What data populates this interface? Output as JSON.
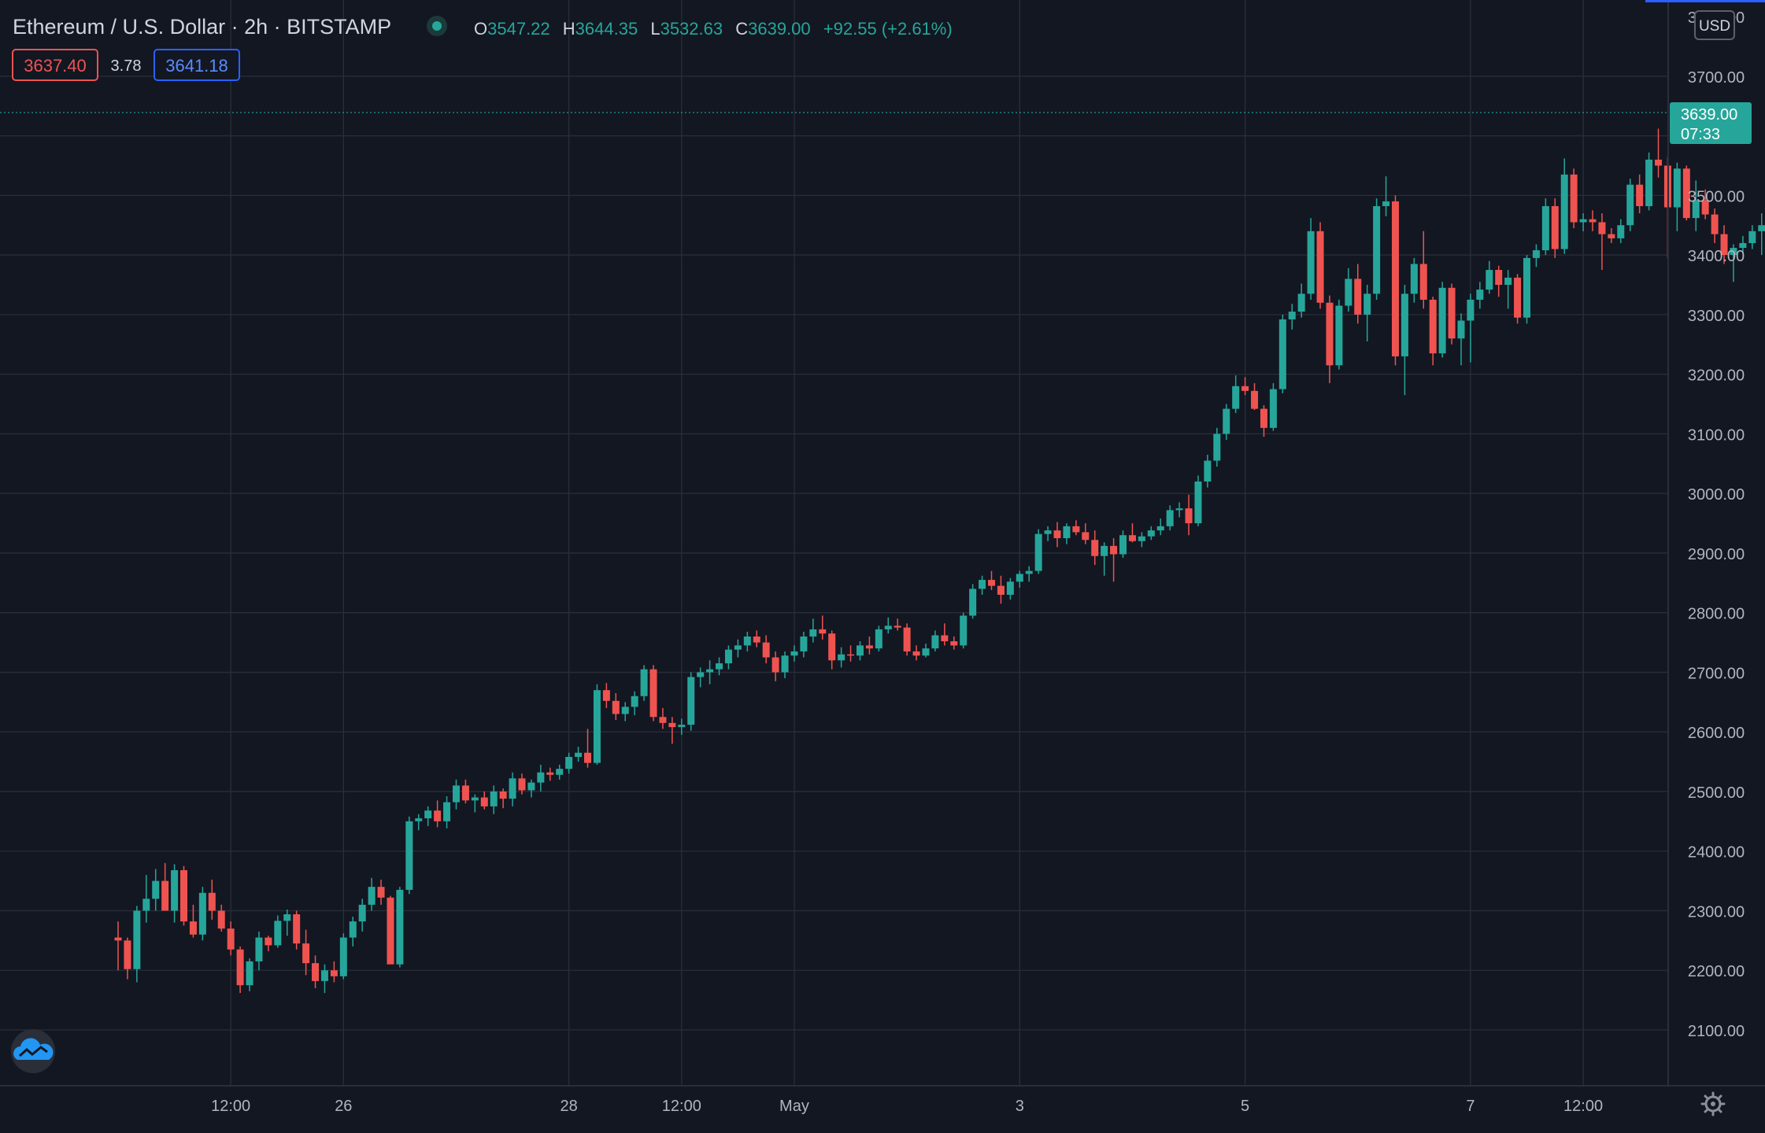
{
  "header": {
    "symbol": "Ethereum / U.S. Dollar",
    "interval": "2h",
    "exchange": "BITSTAMP",
    "o_label": "O",
    "o_value": "3547.22",
    "h_label": "H",
    "h_value": "3644.35",
    "l_label": "L",
    "l_value": "3532.63",
    "c_label": "C",
    "c_value": "3639.00",
    "change": "+92.55 (+2.61%)"
  },
  "quote": {
    "sell": "3637.40",
    "spread": "3.78",
    "buy": "3641.18"
  },
  "currency_button": "USD",
  "price_tag": {
    "price": "3639.00",
    "countdown": "07:33"
  },
  "colors": {
    "background": "#131722",
    "grid": "#2a2e39",
    "up": "#26a69a",
    "down": "#ef5350",
    "text": "#d1d4dc",
    "axis_text": "#b2b5be",
    "blue": "#2962ff"
  },
  "icons": {
    "logo": "tradingview-cloud-icon",
    "settings": "gear-icon"
  },
  "chart_data": {
    "type": "candlestick",
    "title": "Ethereum / U.S. Dollar · 2h · BITSTAMP",
    "y_ticks": [
      2100,
      2200,
      2300,
      2400,
      2500,
      2600,
      2700,
      2800,
      2900,
      3000,
      3100,
      3200,
      3300,
      3400,
      3500,
      3600,
      3700
    ],
    "ylim": [
      2010,
      3810
    ],
    "x_ticks": [
      {
        "label": "12:00",
        "t": 12
      },
      {
        "label": "26",
        "t": 24
      },
      {
        "label": "28",
        "t": 48
      },
      {
        "label": "12:00",
        "t": 60
      },
      {
        "label": "May",
        "t": 72
      },
      {
        "label": "3",
        "t": 96
      },
      {
        "label": "5",
        "t": 120
      },
      {
        "label": "7",
        "t": 144
      },
      {
        "label": "12:00",
        "t": 156
      }
    ],
    "x_unit": "candle index (2h candles)",
    "grid": true,
    "candles": [
      [
        2255,
        2282,
        2200,
        2250
      ],
      [
        2250,
        2255,
        2185,
        2202
      ],
      [
        2202,
        2308,
        2180,
        2300
      ],
      [
        2300,
        2360,
        2280,
        2320
      ],
      [
        2320,
        2370,
        2300,
        2350
      ],
      [
        2350,
        2380,
        2318,
        2300
      ],
      [
        2300,
        2378,
        2280,
        2368
      ],
      [
        2368,
        2375,
        2275,
        2282
      ],
      [
        2282,
        2310,
        2255,
        2260
      ],
      [
        2260,
        2340,
        2250,
        2330
      ],
      [
        2330,
        2352,
        2285,
        2300
      ],
      [
        2300,
        2310,
        2265,
        2270
      ],
      [
        2270,
        2282,
        2225,
        2235
      ],
      [
        2235,
        2240,
        2162,
        2175
      ],
      [
        2175,
        2220,
        2165,
        2215
      ],
      [
        2215,
        2265,
        2200,
        2255
      ],
      [
        2255,
        2258,
        2232,
        2242
      ],
      [
        2242,
        2292,
        2238,
        2283
      ],
      [
        2283,
        2302,
        2258,
        2294
      ],
      [
        2294,
        2300,
        2235,
        2245
      ],
      [
        2245,
        2268,
        2192,
        2212
      ],
      [
        2212,
        2225,
        2170,
        2182
      ],
      [
        2182,
        2210,
        2162,
        2200
      ],
      [
        2200,
        2215,
        2180,
        2190
      ],
      [
        2190,
        2262,
        2185,
        2255
      ],
      [
        2255,
        2290,
        2240,
        2282
      ],
      [
        2282,
        2320,
        2265,
        2310
      ],
      [
        2310,
        2355,
        2300,
        2340
      ],
      [
        2340,
        2352,
        2310,
        2322
      ],
      [
        2322,
        2325,
        2225,
        2210
      ],
      [
        2210,
        2340,
        2205,
        2335
      ],
      [
        2335,
        2458,
        2328,
        2450
      ],
      [
        2450,
        2462,
        2435,
        2455
      ],
      [
        2455,
        2475,
        2442,
        2468
      ],
      [
        2468,
        2485,
        2440,
        2450
      ],
      [
        2450,
        2492,
        2438,
        2482
      ],
      [
        2482,
        2520,
        2470,
        2510
      ],
      [
        2510,
        2520,
        2480,
        2485
      ],
      [
        2485,
        2495,
        2465,
        2490
      ],
      [
        2490,
        2500,
        2470,
        2475
      ],
      [
        2475,
        2510,
        2462,
        2500
      ],
      [
        2500,
        2505,
        2472,
        2488
      ],
      [
        2488,
        2532,
        2475,
        2522
      ],
      [
        2522,
        2530,
        2495,
        2502
      ],
      [
        2502,
        2520,
        2490,
        2515
      ],
      [
        2515,
        2545,
        2500,
        2532
      ],
      [
        2532,
        2540,
        2518,
        2528
      ],
      [
        2528,
        2545,
        2520,
        2538
      ],
      [
        2538,
        2565,
        2530,
        2558
      ],
      [
        2558,
        2575,
        2550,
        2565
      ],
      [
        2565,
        2605,
        2540,
        2548
      ],
      [
        2548,
        2680,
        2545,
        2670
      ],
      [
        2670,
        2682,
        2640,
        2652
      ],
      [
        2652,
        2665,
        2620,
        2630
      ],
      [
        2630,
        2650,
        2618,
        2642
      ],
      [
        2642,
        2668,
        2628,
        2660
      ],
      [
        2660,
        2712,
        2652,
        2705
      ],
      [
        2705,
        2712,
        2618,
        2625
      ],
      [
        2625,
        2640,
        2605,
        2615
      ],
      [
        2615,
        2625,
        2580,
        2608
      ],
      [
        2608,
        2622,
        2595,
        2612
      ],
      [
        2612,
        2700,
        2602,
        2692
      ],
      [
        2692,
        2708,
        2675,
        2700
      ],
      [
        2700,
        2720,
        2680,
        2705
      ],
      [
        2705,
        2725,
        2695,
        2715
      ],
      [
        2715,
        2745,
        2705,
        2738
      ],
      [
        2738,
        2755,
        2725,
        2745
      ],
      [
        2745,
        2768,
        2735,
        2760
      ],
      [
        2760,
        2770,
        2742,
        2750
      ],
      [
        2750,
        2762,
        2715,
        2725
      ],
      [
        2725,
        2735,
        2685,
        2700
      ],
      [
        2700,
        2735,
        2690,
        2728
      ],
      [
        2728,
        2745,
        2718,
        2735
      ],
      [
        2735,
        2768,
        2725,
        2760
      ],
      [
        2760,
        2790,
        2750,
        2772
      ],
      [
        2772,
        2795,
        2755,
        2765
      ],
      [
        2765,
        2770,
        2705,
        2720
      ],
      [
        2720,
        2742,
        2708,
        2730
      ],
      [
        2730,
        2745,
        2718,
        2728
      ],
      [
        2728,
        2752,
        2720,
        2745
      ],
      [
        2745,
        2760,
        2730,
        2740
      ],
      [
        2740,
        2778,
        2735,
        2772
      ],
      [
        2772,
        2792,
        2765,
        2778
      ],
      [
        2778,
        2790,
        2770,
        2775
      ],
      [
        2775,
        2782,
        2728,
        2735
      ],
      [
        2735,
        2745,
        2720,
        2728
      ],
      [
        2728,
        2748,
        2725,
        2740
      ],
      [
        2740,
        2770,
        2735,
        2762
      ],
      [
        2762,
        2782,
        2745,
        2752
      ],
      [
        2752,
        2760,
        2738,
        2745
      ],
      [
        2745,
        2800,
        2740,
        2795
      ],
      [
        2795,
        2848,
        2790,
        2840
      ],
      [
        2840,
        2862,
        2830,
        2855
      ],
      [
        2855,
        2870,
        2838,
        2845
      ],
      [
        2845,
        2862,
        2815,
        2830
      ],
      [
        2830,
        2858,
        2822,
        2852
      ],
      [
        2852,
        2870,
        2842,
        2865
      ],
      [
        2865,
        2878,
        2852,
        2870
      ],
      [
        2870,
        2940,
        2865,
        2932
      ],
      [
        2932,
        2945,
        2920,
        2938
      ],
      [
        2938,
        2952,
        2910,
        2925
      ],
      [
        2925,
        2950,
        2915,
        2945
      ],
      [
        2945,
        2955,
        2930,
        2935
      ],
      [
        2935,
        2950,
        2915,
        2922
      ],
      [
        2922,
        2938,
        2880,
        2895
      ],
      [
        2895,
        2918,
        2862,
        2912
      ],
      [
        2912,
        2925,
        2852,
        2898
      ],
      [
        2898,
        2938,
        2892,
        2930
      ],
      [
        2930,
        2950,
        2918,
        2920
      ],
      [
        2920,
        2935,
        2910,
        2928
      ],
      [
        2928,
        2945,
        2922,
        2938
      ],
      [
        2938,
        2958,
        2930,
        2945
      ],
      [
        2945,
        2980,
        2938,
        2972
      ],
      [
        2972,
        2985,
        2960,
        2975
      ],
      [
        2975,
        2998,
        2930,
        2950
      ],
      [
        2950,
        3030,
        2945,
        3020
      ],
      [
        3020,
        3065,
        3010,
        3055
      ],
      [
        3055,
        3110,
        3045,
        3100
      ],
      [
        3100,
        3150,
        3090,
        3142
      ],
      [
        3142,
        3198,
        3135,
        3180
      ],
      [
        3180,
        3195,
        3165,
        3172
      ],
      [
        3172,
        3185,
        3140,
        3142
      ],
      [
        3142,
        3148,
        3095,
        3110
      ],
      [
        3110,
        3185,
        3105,
        3175
      ],
      [
        3175,
        3300,
        3168,
        3292
      ],
      [
        3292,
        3318,
        3275,
        3305
      ],
      [
        3305,
        3352,
        3295,
        3335
      ],
      [
        3335,
        3462,
        3325,
        3440
      ],
      [
        3440,
        3455,
        3310,
        3320
      ],
      [
        3320,
        3332,
        3185,
        3215
      ],
      [
        3215,
        3325,
        3208,
        3315
      ],
      [
        3315,
        3378,
        3305,
        3360
      ],
      [
        3360,
        3385,
        3285,
        3300
      ],
      [
        3300,
        3350,
        3255,
        3335
      ],
      [
        3335,
        3495,
        3325,
        3482
      ],
      [
        3482,
        3532,
        3465,
        3490
      ],
      [
        3490,
        3500,
        3215,
        3230
      ],
      [
        3230,
        3350,
        3165,
        3335
      ],
      [
        3335,
        3395,
        3320,
        3385
      ],
      [
        3385,
        3440,
        3310,
        3325
      ],
      [
        3325,
        3330,
        3215,
        3235
      ],
      [
        3235,
        3355,
        3228,
        3345
      ],
      [
        3345,
        3352,
        3250,
        3260
      ],
      [
        3260,
        3302,
        3215,
        3290
      ],
      [
        3290,
        3335,
        3220,
        3325
      ],
      [
        3325,
        3355,
        3310,
        3342
      ],
      [
        3342,
        3390,
        3335,
        3375
      ],
      [
        3375,
        3382,
        3330,
        3350
      ],
      [
        3350,
        3375,
        3310,
        3362
      ],
      [
        3362,
        3368,
        3285,
        3295
      ],
      [
        3295,
        3400,
        3285,
        3395
      ],
      [
        3395,
        3418,
        3380,
        3408
      ],
      [
        3408,
        3495,
        3400,
        3482
      ],
      [
        3482,
        3495,
        3395,
        3410
      ],
      [
        3410,
        3562,
        3402,
        3535
      ],
      [
        3535,
        3545,
        3445,
        3455
      ],
      [
        3455,
        3470,
        3440,
        3460
      ],
      [
        3460,
        3475,
        3440,
        3455
      ],
      [
        3455,
        3470,
        3375,
        3435
      ],
      [
        3435,
        3445,
        3420,
        3428
      ],
      [
        3428,
        3460,
        3420,
        3450
      ],
      [
        3450,
        3528,
        3440,
        3518
      ],
      [
        3518,
        3535,
        3470,
        3482
      ],
      [
        3482,
        3572,
        3475,
        3560
      ],
      [
        3560,
        3612,
        3530,
        3550
      ],
      [
        3550,
        3565,
        3395,
        3480
      ],
      [
        3480,
        3555,
        3440,
        3545
      ],
      [
        3545,
        3550,
        3458,
        3462
      ],
      [
        3462,
        3525,
        3440,
        3492
      ],
      [
        3492,
        3510,
        3460,
        3468
      ],
      [
        3468,
        3478,
        3420,
        3435
      ],
      [
        3435,
        3450,
        3385,
        3400
      ],
      [
        3400,
        3418,
        3355,
        3412
      ],
      [
        3412,
        3432,
        3402,
        3420
      ],
      [
        3420,
        3450,
        3410,
        3440
      ],
      [
        3440,
        3470,
        3400,
        3450
      ],
      [
        3450,
        3485,
        3440,
        3478
      ],
      [
        3478,
        3578,
        3470,
        3552
      ],
      [
        3552,
        3592,
        3535,
        3542
      ],
      [
        3542,
        3548,
        3495,
        3520
      ],
      [
        3520,
        3528,
        3470,
        3495
      ],
      [
        3495,
        3510,
        3452,
        3460
      ],
      [
        3460,
        3478,
        3420,
        3462
      ],
      [
        3462,
        3525,
        3455,
        3518
      ],
      [
        3518,
        3580,
        3510,
        3535
      ],
      [
        3535,
        3540,
        3525,
        3530
      ],
      [
        3530,
        3542,
        3522,
        3535
      ],
      [
        3535,
        3540,
        3505,
        3528
      ],
      [
        3528,
        3580,
        3520,
        3560
      ],
      [
        3560,
        3592,
        3535,
        3547
      ],
      [
        3547.22,
        3644.35,
        3532.63,
        3639.0
      ]
    ]
  }
}
